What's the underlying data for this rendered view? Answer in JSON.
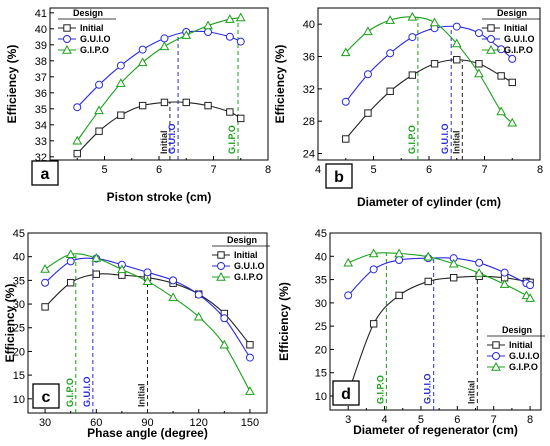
{
  "colors": {
    "Initial": "#222222",
    "G.U.I.O": "#2a2ae0",
    "G.I.P.O": "#18a018"
  },
  "chart_data": [
    {
      "type": "line",
      "panel_label": "a",
      "xlabel": "Piston stroke (cm)",
      "ylabel": "Efficiency (%)",
      "xlim": [
        4,
        8
      ],
      "ylim": [
        31.8,
        41.3
      ],
      "xticks": [
        4,
        5,
        6,
        7,
        8
      ],
      "yticks": [
        32,
        33,
        34,
        35,
        36,
        37,
        38,
        39,
        40,
        41
      ],
      "legend": {
        "title": "Design",
        "position": "top-left"
      },
      "series": [
        {
          "name": "Initial",
          "marker": "square",
          "x": [
            4.5,
            4.9,
            5.3,
            5.7,
            6.1,
            6.5,
            6.9,
            7.3,
            7.5
          ],
          "y": [
            32.2,
            33.6,
            34.6,
            35.2,
            35.4,
            35.4,
            35.2,
            34.8,
            34.4
          ]
        },
        {
          "name": "G.U.I.O",
          "marker": "circle",
          "x": [
            4.5,
            4.9,
            5.3,
            5.7,
            6.1,
            6.5,
            6.9,
            7.3,
            7.5
          ],
          "y": [
            35.1,
            36.5,
            37.7,
            38.7,
            39.4,
            39.8,
            39.8,
            39.5,
            39.2
          ]
        },
        {
          "name": "G.I.P.O",
          "marker": "triangle",
          "x": [
            4.5,
            4.9,
            5.3,
            5.7,
            6.1,
            6.5,
            6.9,
            7.3,
            7.5
          ],
          "y": [
            33.0,
            34.9,
            36.6,
            37.9,
            38.9,
            39.6,
            40.2,
            40.6,
            40.7
          ]
        }
      ],
      "annotations": [
        {
          "label": "Initial",
          "series": "Initial",
          "x": 6.2
        },
        {
          "label": "G.U.I.O",
          "series": "G.U.I.O",
          "x": 6.35
        },
        {
          "label": "G.I.P.O",
          "series": "G.I.P.O",
          "x": 7.45
        }
      ]
    },
    {
      "type": "line",
      "panel_label": "b",
      "xlabel": "Diameter of cylinder (cm)",
      "ylabel": "Efficiency (%)",
      "xlim": [
        4,
        8
      ],
      "ylim": [
        23.2,
        42
      ],
      "xticks": [
        4,
        5,
        6,
        7,
        8
      ],
      "yticks": [
        24,
        28,
        32,
        36,
        40
      ],
      "legend": {
        "title": "Design",
        "position": "top-right"
      },
      "series": [
        {
          "name": "Initial",
          "marker": "square",
          "x": [
            4.5,
            4.9,
            5.3,
            5.7,
            6.1,
            6.5,
            6.9,
            7.3,
            7.5
          ],
          "y": [
            25.8,
            29.0,
            31.7,
            33.7,
            35.1,
            35.6,
            35.1,
            33.6,
            32.8
          ]
        },
        {
          "name": "G.U.I.O",
          "marker": "circle",
          "x": [
            4.5,
            4.9,
            5.3,
            5.7,
            6.1,
            6.5,
            6.9,
            7.3,
            7.5
          ],
          "y": [
            30.4,
            33.8,
            36.4,
            38.4,
            39.5,
            39.7,
            38.9,
            36.9,
            35.7
          ]
        },
        {
          "name": "G.I.P.O",
          "marker": "triangle",
          "x": [
            4.5,
            4.9,
            5.3,
            5.7,
            6.1,
            6.5,
            6.9,
            7.3,
            7.5
          ],
          "y": [
            36.5,
            39.1,
            40.5,
            40.9,
            40.2,
            37.6,
            33.9,
            29.2,
            27.8
          ]
        }
      ],
      "annotations": [
        {
          "label": "G.I.P.O",
          "series": "G.I.P.O",
          "x": 5.8
        },
        {
          "label": "G.U.I.O",
          "series": "G.U.I.O",
          "x": 6.4
        },
        {
          "label": "Initial",
          "series": "Initial",
          "x": 6.6
        }
      ]
    },
    {
      "type": "line",
      "panel_label": "c",
      "xlabel": "Phase angle (degree)",
      "ylabel": "Efficiency (%)",
      "xlim": [
        20,
        160
      ],
      "ylim": [
        7,
        45
      ],
      "xticks": [
        30,
        60,
        90,
        120,
        150
      ],
      "yticks": [
        10,
        15,
        20,
        25,
        30,
        35,
        40,
        45
      ],
      "legend": {
        "title": "Design",
        "position": "top-right"
      },
      "series": [
        {
          "name": "Initial",
          "marker": "square",
          "x": [
            30,
            45,
            60,
            75,
            90,
            105,
            120,
            135,
            150
          ],
          "y": [
            29.4,
            34.5,
            36.3,
            36.1,
            35.6,
            34.4,
            32.1,
            28.0,
            21.4
          ]
        },
        {
          "name": "G.U.I.O",
          "marker": "circle",
          "x": [
            30,
            45,
            60,
            75,
            90,
            105,
            120,
            135,
            150
          ],
          "y": [
            34.5,
            39.0,
            39.6,
            38.3,
            36.7,
            35.0,
            32.0,
            27.0,
            18.7
          ]
        },
        {
          "name": "G.I.P.O",
          "marker": "triangle",
          "x": [
            30,
            45,
            60,
            75,
            90,
            105,
            120,
            135,
            150
          ],
          "y": [
            37.4,
            40.5,
            39.7,
            37.3,
            34.8,
            31.4,
            27.3,
            21.4,
            11.6
          ]
        }
      ],
      "annotations": [
        {
          "label": "G.I.P.O",
          "series": "G.I.P.O",
          "x": 48
        },
        {
          "label": "G.U.I.O",
          "series": "G.U.I.O",
          "x": 58
        },
        {
          "label": "Initial",
          "series": "Initial",
          "x": 90
        }
      ]
    },
    {
      "type": "line",
      "panel_label": "d",
      "xlabel": "Diameter of regenerator (cm)",
      "ylabel": "Efficiency (%)",
      "xlim": [
        2.5,
        8.3
      ],
      "ylim": [
        7,
        45
      ],
      "xticks": [
        3,
        4,
        5,
        6,
        7,
        8
      ],
      "yticks": [
        10,
        15,
        20,
        25,
        30,
        35,
        40,
        45
      ],
      "legend": {
        "title": "Design",
        "position": "bottom-right"
      },
      "series": [
        {
          "name": "Initial",
          "marker": "square",
          "x": [
            3.0,
            3.7,
            4.4,
            5.2,
            5.9,
            6.6,
            7.3,
            7.9,
            8.0
          ],
          "y": [
            10.6,
            25.5,
            31.6,
            34.6,
            35.4,
            35.7,
            35.4,
            34.6,
            34.4
          ]
        },
        {
          "name": "G.U.I.O",
          "marker": "circle",
          "x": [
            3.0,
            3.7,
            4.4,
            5.2,
            5.9,
            6.6,
            7.3,
            7.9,
            8.0
          ],
          "y": [
            31.6,
            37.2,
            39.2,
            39.6,
            39.6,
            38.6,
            36.5,
            34.2,
            33.8
          ]
        },
        {
          "name": "G.I.P.O",
          "marker": "triangle",
          "x": [
            3.0,
            3.7,
            4.4,
            5.2,
            5.9,
            6.6,
            7.3,
            7.9,
            8.0
          ],
          "y": [
            38.6,
            40.6,
            40.6,
            39.9,
            38.4,
            36.4,
            34.0,
            31.6,
            31.0
          ]
        }
      ],
      "annotations": [
        {
          "label": "G.I.P.O",
          "series": "G.I.P.O",
          "x": 4.05
        },
        {
          "label": "G.U.I.O",
          "series": "G.U.I.O",
          "x": 5.35
        },
        {
          "label": "Initial",
          "series": "Initial",
          "x": 6.55
        }
      ]
    }
  ]
}
